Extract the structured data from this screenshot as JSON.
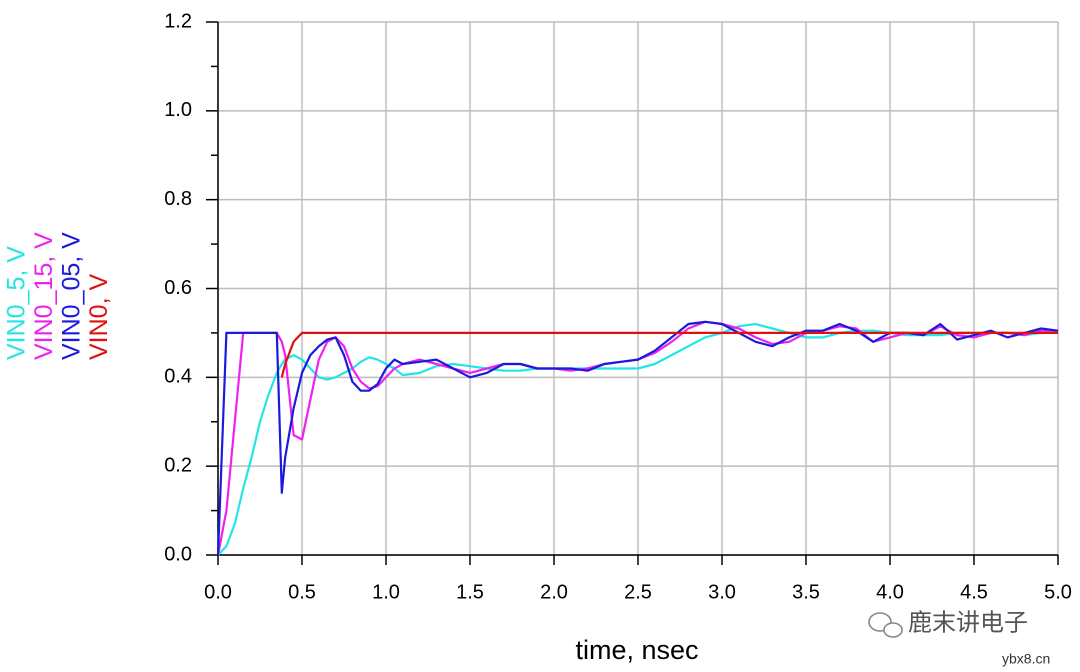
{
  "chart_data": {
    "type": "line",
    "x_label": "time, nsec",
    "x": [
      0,
      0.05,
      0.1,
      0.15,
      0.2,
      0.25,
      0.3,
      0.35,
      0.38,
      0.4,
      0.45,
      0.5,
      0.55,
      0.6,
      0.65,
      0.7,
      0.75,
      0.8,
      0.85,
      0.9,
      0.95,
      1.0,
      1.05,
      1.1,
      1.2,
      1.3,
      1.4,
      1.5,
      1.6,
      1.7,
      1.8,
      1.9,
      2.0,
      2.1,
      2.2,
      2.3,
      2.4,
      2.5,
      2.6,
      2.7,
      2.8,
      2.9,
      3.0,
      3.1,
      3.2,
      3.3,
      3.4,
      3.5,
      3.6,
      3.7,
      3.8,
      3.9,
      4.0,
      4.1,
      4.2,
      4.3,
      4.4,
      4.5,
      4.6,
      4.7,
      4.8,
      4.9,
      5.0
    ],
    "series": [
      {
        "name": "VIN0_5, V",
        "color": "#22e5e5",
        "values": [
          0,
          0.02,
          0.07,
          0.15,
          0.22,
          0.3,
          0.36,
          0.41,
          0.43,
          0.44,
          0.45,
          0.44,
          0.42,
          0.4,
          0.395,
          0.4,
          0.41,
          0.42,
          0.435,
          0.445,
          0.44,
          0.43,
          0.42,
          0.405,
          0.41,
          0.425,
          0.43,
          0.425,
          0.42,
          0.415,
          0.415,
          0.42,
          0.42,
          0.42,
          0.42,
          0.42,
          0.42,
          0.42,
          0.43,
          0.45,
          0.47,
          0.49,
          0.5,
          0.515,
          0.52,
          0.51,
          0.5,
          0.49,
          0.49,
          0.5,
          0.505,
          0.505,
          0.5,
          0.495,
          0.495,
          0.495,
          0.5,
          0.5,
          0.5,
          0.5,
          0.495,
          0.5,
          0.5
        ]
      },
      {
        "name": "VIN0_15, V",
        "color": "#ee22ee",
        "values": [
          0,
          0.1,
          0.3,
          0.5,
          0.5,
          0.5,
          0.5,
          0.5,
          0.48,
          0.45,
          0.27,
          0.26,
          0.35,
          0.44,
          0.48,
          0.49,
          0.47,
          0.42,
          0.39,
          0.375,
          0.38,
          0.4,
          0.42,
          0.43,
          0.44,
          0.43,
          0.42,
          0.41,
          0.42,
          0.43,
          0.43,
          0.42,
          0.42,
          0.415,
          0.42,
          0.43,
          0.435,
          0.44,
          0.455,
          0.48,
          0.51,
          0.525,
          0.52,
          0.51,
          0.49,
          0.475,
          0.48,
          0.5,
          0.505,
          0.515,
          0.51,
          0.48,
          0.49,
          0.5,
          0.495,
          0.515,
          0.495,
          0.49,
          0.5,
          0.5,
          0.495,
          0.505,
          0.505
        ]
      },
      {
        "name": "VIN0_05, V",
        "color": "#1a1adc",
        "values": [
          0,
          0.5,
          0.5,
          0.5,
          0.5,
          0.5,
          0.5,
          0.5,
          0.14,
          0.22,
          0.33,
          0.41,
          0.45,
          0.47,
          0.485,
          0.49,
          0.45,
          0.39,
          0.37,
          0.37,
          0.385,
          0.42,
          0.44,
          0.43,
          0.435,
          0.44,
          0.42,
          0.4,
          0.41,
          0.43,
          0.43,
          0.42,
          0.42,
          0.42,
          0.415,
          0.43,
          0.435,
          0.44,
          0.46,
          0.49,
          0.52,
          0.525,
          0.52,
          0.5,
          0.48,
          0.47,
          0.49,
          0.505,
          0.505,
          0.52,
          0.505,
          0.48,
          0.5,
          0.5,
          0.495,
          0.52,
          0.485,
          0.495,
          0.505,
          0.49,
          0.5,
          0.51,
          0.505
        ]
      },
      {
        "name": "VIN0, V",
        "color": "#e01010",
        "values": [
          null,
          null,
          null,
          null,
          null,
          null,
          null,
          null,
          0.4,
          0.43,
          0.48,
          0.5,
          0.5,
          0.5,
          0.5,
          0.5,
          0.5,
          0.5,
          0.5,
          0.5,
          0.5,
          0.5,
          0.5,
          0.5,
          0.5,
          0.5,
          0.5,
          0.5,
          0.5,
          0.5,
          0.5,
          0.5,
          0.5,
          0.5,
          0.5,
          0.5,
          0.5,
          0.5,
          0.5,
          0.5,
          0.5,
          0.5,
          0.5,
          0.5,
          0.5,
          0.5,
          0.5,
          0.5,
          0.5,
          0.5,
          0.5,
          0.5,
          0.5,
          0.5,
          0.5,
          0.5,
          0.5,
          0.5,
          0.5,
          0.5,
          0.5,
          0.5,
          0.5
        ]
      }
    ],
    "xlim": [
      0,
      5
    ],
    "xticks": [
      {
        "value": 0,
        "label": "0.0"
      },
      0.5,
      {
        "value": 1,
        "label": "1.0"
      },
      1.5,
      {
        "value": 2,
        "label": "2.0"
      },
      2.5,
      {
        "value": 3,
        "label": "3.0"
      },
      3.5,
      {
        "value": 4,
        "label": "4.0"
      },
      4.5,
      {
        "value": 5,
        "label": "5.0"
      }
    ],
    "ylim": [
      0,
      1.2
    ],
    "yticks": [
      {
        "value": 0,
        "label": "0.0"
      },
      0.2,
      0.4,
      0.6,
      0.8,
      {
        "value": 1,
        "label": "1.0"
      },
      1.2
    ],
    "yminorticks": [
      0.1,
      0.3,
      0.5,
      0.7,
      0.9,
      1.1
    ],
    "grid": true,
    "legend": "left",
    "watermark": {
      "text": "鹿末讲电子",
      "site": "ybx8.cn"
    }
  }
}
